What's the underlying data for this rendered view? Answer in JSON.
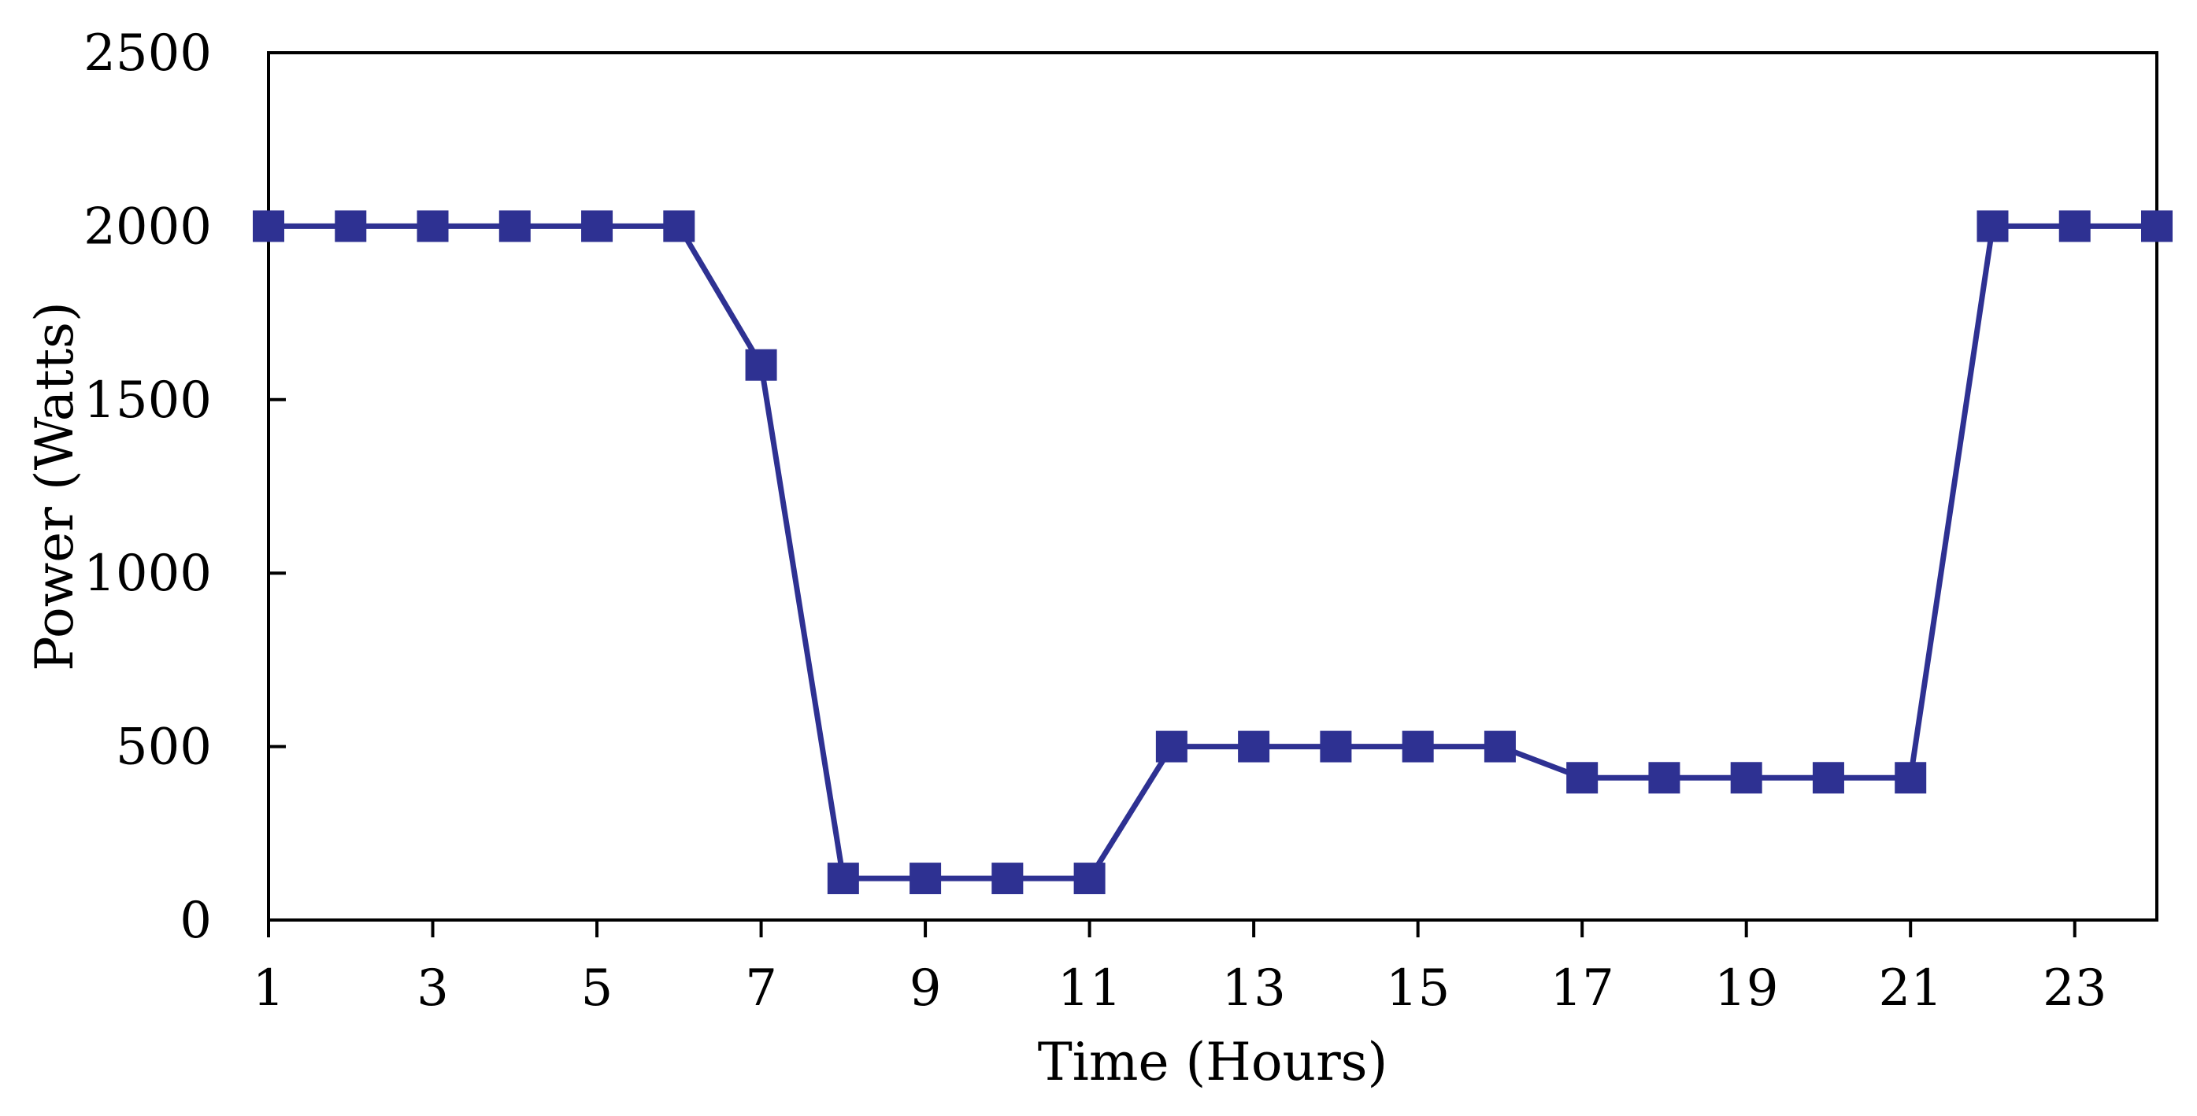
{
  "chart_data": {
    "type": "line",
    "title": "",
    "xlabel": "Time (Hours)",
    "ylabel": "Power (Watts)",
    "x": [
      1,
      2,
      3,
      4,
      5,
      6,
      7,
      8,
      9,
      10,
      11,
      12,
      13,
      14,
      15,
      16,
      17,
      18,
      19,
      20,
      21,
      22,
      23,
      24
    ],
    "xticks": [
      1,
      3,
      5,
      7,
      9,
      11,
      13,
      15,
      17,
      19,
      21,
      23
    ],
    "xlim": [
      1,
      24
    ],
    "yticks": [
      0,
      500,
      1000,
      1500,
      2000,
      2500
    ],
    "ylim": [
      0,
      2500
    ],
    "grid": false,
    "legend": "none",
    "marker": "square",
    "series": [
      {
        "color": "#2E3192",
        "values": [
          2000,
          2000,
          2000,
          2000,
          2000,
          2000,
          1600,
          120,
          120,
          120,
          120,
          500,
          500,
          500,
          500,
          500,
          410,
          410,
          410,
          410,
          410,
          2000,
          2000,
          2000
        ]
      }
    ]
  }
}
